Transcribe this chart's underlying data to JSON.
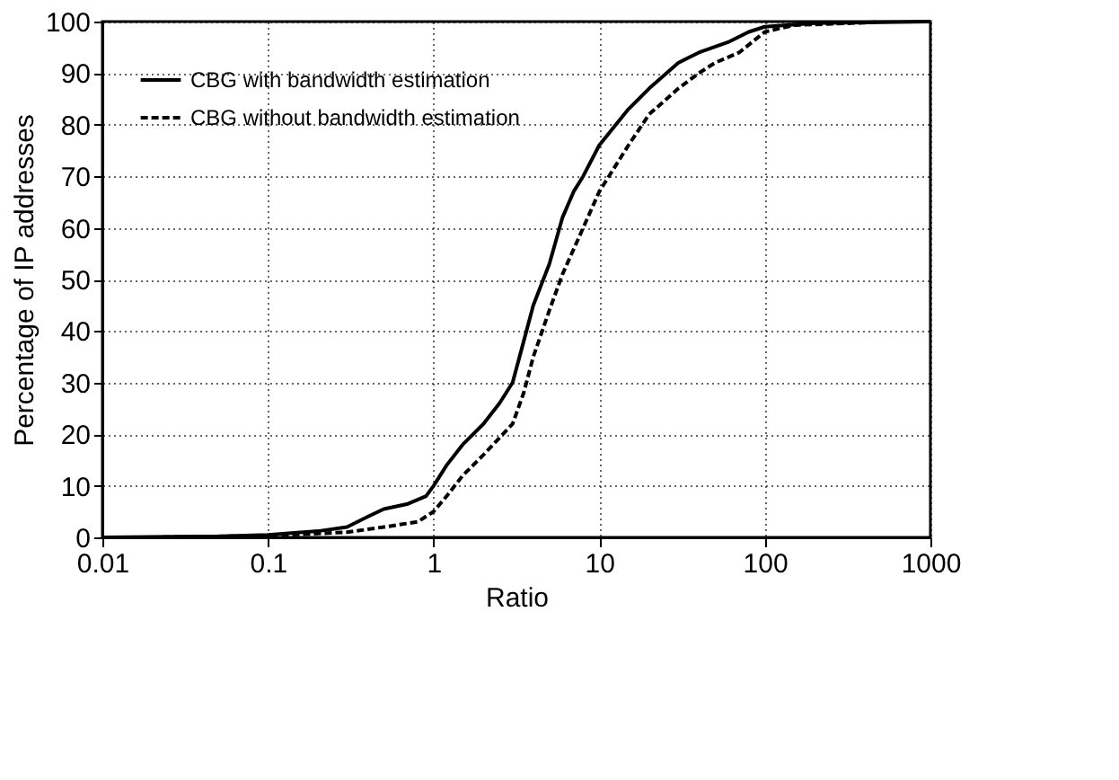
{
  "chart_data": {
    "type": "line",
    "xlabel": "Ratio",
    "ylabel": "Percentage of IP addresses",
    "log": "x",
    "xlim": [
      0.01,
      1000
    ],
    "xticks": [
      0.01,
      0.1,
      1,
      10,
      100,
      1000
    ],
    "ylim": [
      0,
      100
    ],
    "yticks": [
      0,
      10,
      20,
      30,
      40,
      50,
      60,
      70,
      80,
      90,
      100
    ],
    "grid": true,
    "legend": "top left",
    "marker": "none",
    "series": [
      {
        "name": "CBG with bandwidth estimation",
        "color": "#000000",
        "line_style": "solid",
        "x": [
          0.01,
          0.05,
          0.1,
          0.2,
          0.3,
          0.4,
          0.5,
          0.7,
          0.9,
          1,
          1.2,
          1.5,
          2,
          2.5,
          3,
          3.5,
          4,
          5,
          6,
          7,
          8,
          10,
          15,
          20,
          30,
          40,
          60,
          80,
          100,
          200,
          1000
        ],
        "values": [
          0,
          0.2,
          0.5,
          1.2,
          2,
          4,
          5.5,
          6.5,
          8,
          10,
          14,
          18,
          22,
          26,
          30,
          38,
          45,
          53,
          62,
          67,
          70,
          76,
          83,
          87,
          92,
          94,
          96,
          98,
          99,
          99.7,
          100
        ]
      },
      {
        "name": "CBG without bandwidth estimation",
        "color": "#000000",
        "line_style": "dashed",
        "x": [
          0.02,
          0.1,
          0.3,
          0.5,
          0.8,
          1,
          1.2,
          1.5,
          2,
          3,
          3.5,
          4,
          5,
          6,
          8,
          10,
          15,
          20,
          30,
          40,
          50,
          70,
          100,
          150,
          500
        ],
        "values": [
          0,
          0.3,
          1,
          2,
          3,
          5,
          8,
          12,
          16,
          22,
          28,
          35,
          44,
          51,
          60,
          67,
          76,
          82,
          87,
          90,
          92,
          94,
          98,
          99.3,
          99.9
        ]
      }
    ]
  }
}
